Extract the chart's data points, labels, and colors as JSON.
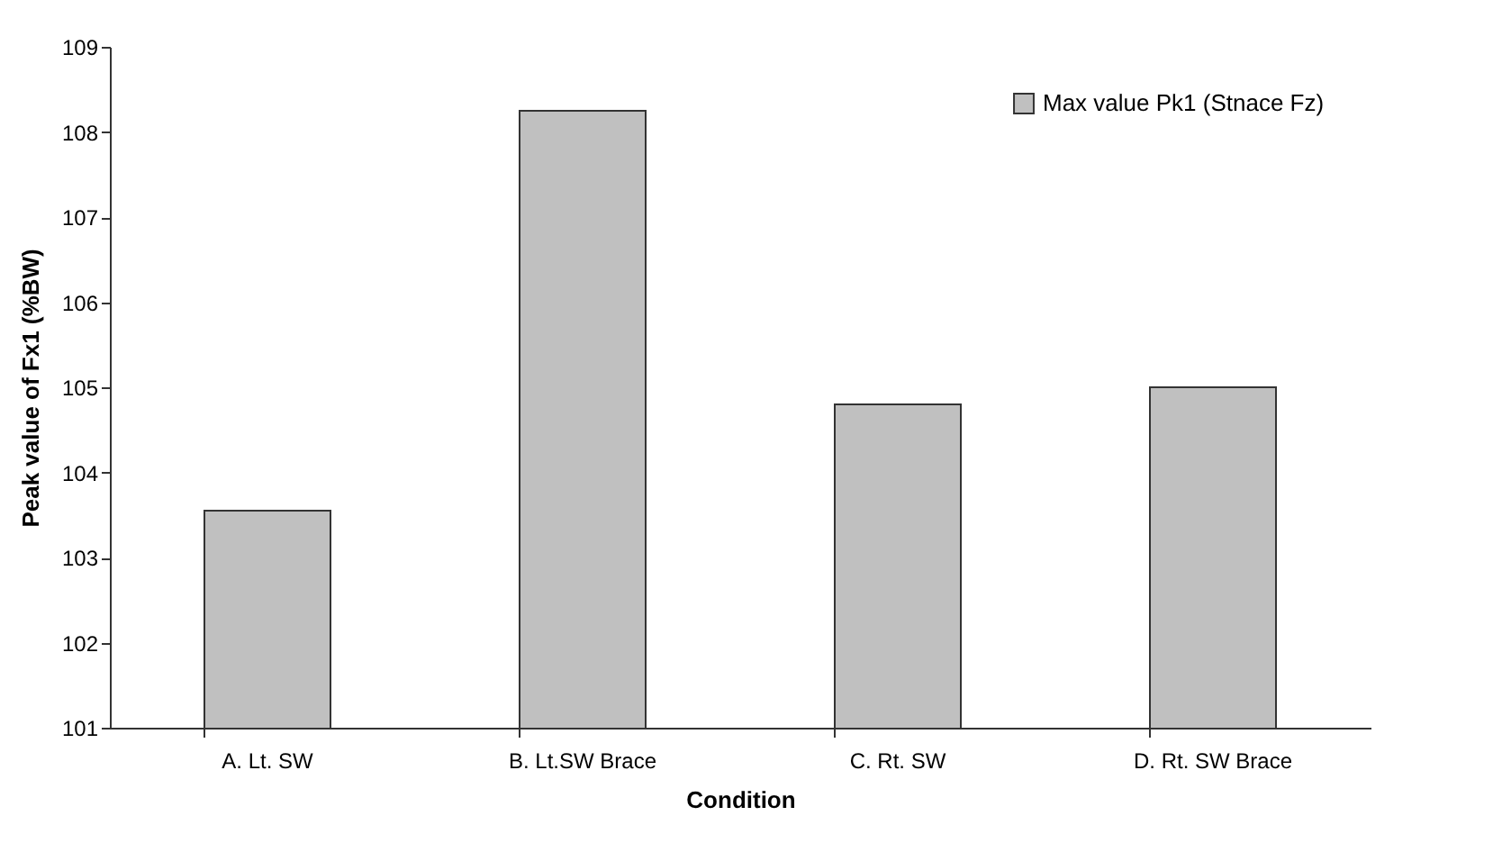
{
  "chart_data": {
    "type": "bar",
    "xlabel": "Condition",
    "ylabel": "Peak value of Fx1 (%BW)",
    "categories": [
      "A. Lt. SW",
      "B. Lt.SW Brace",
      "C. Rt. SW",
      "D. Rt. SW Brace"
    ],
    "series": [
      {
        "name": "Max value Pk1 (Stnace Fz)",
        "color": "#c0c0c0",
        "values": [
          103.55,
          108.25,
          104.8,
          105.0
        ]
      }
    ],
    "ylim": [
      101,
      109
    ],
    "yticks": [
      101,
      102,
      103,
      104,
      105,
      106,
      107,
      108,
      109
    ],
    "grid": false,
    "legend": "top right"
  }
}
